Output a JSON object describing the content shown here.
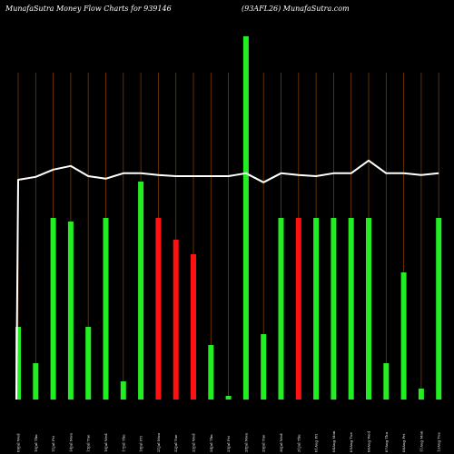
{
  "header": {
    "left": "MunafaSutra  Money Flow  Charts for 939146",
    "right": "(93AFL26) MunafaSutra.com"
  },
  "chart_data": {
    "type": "bar",
    "title": "MunafaSutra  Money Flow  Charts for 939146",
    "subtitle": "(93AFL26) MunafaSutra.com",
    "background": "#000000",
    "colors": {
      "up": "#22ee22",
      "down": "#ff1111",
      "line": "#ffffff",
      "grid": "#7a3a00"
    },
    "ylim": [
      0,
      100
    ],
    "grid": "vertical",
    "categories": [
      "09Jul Wed",
      "10Jul Thu",
      "11Jul Fri",
      "14Jul Mon",
      "15Jul Tue",
      "16Jul Wed",
      "17Jul Thu",
      "18Jul Fri",
      "21Jul Mon",
      "22Jul Tue",
      "23Jul Wed",
      "24Jul Thu",
      "25Jul Fri",
      "28Jul Mon",
      "29Jul Tue",
      "30Jul Wed",
      "31Jul Thu",
      "01Aug Fri",
      "04Aug Mon",
      "05Aug Tue",
      "06Aug Wed",
      "07Aug Thu",
      "08Aug Fri",
      "11Aug Mon",
      "12Aug Tue"
    ],
    "series": [
      {
        "values": [
          20,
          10,
          50,
          49,
          20,
          50,
          5,
          60,
          50,
          44,
          40,
          15,
          1,
          100,
          18,
          50,
          50,
          50,
          50,
          50,
          50,
          10,
          35,
          3,
          50
        ],
        "directions": [
          "up",
          "up",
          "up",
          "up",
          "up",
          "up",
          "up",
          "up",
          "down",
          "down",
          "down",
          "up",
          "up",
          "up",
          "up",
          "up",
          "down",
          "up",
          "up",
          "up",
          "up",
          "up",
          "up",
          "up",
          "up"
        ]
      },
      {
        "type": "line",
        "values": [
          60.5,
          61.3,
          63.3,
          64.3,
          61.5,
          60.8,
          62.3,
          62.3,
          61.8,
          61.5,
          61.5,
          61.5,
          61.5,
          62.3,
          59.8,
          62.3,
          61.8,
          61.5,
          62.3,
          62.3,
          65.8,
          62.3,
          62.3,
          61.8,
          62.3
        ],
        "start_value": 0
      }
    ]
  }
}
